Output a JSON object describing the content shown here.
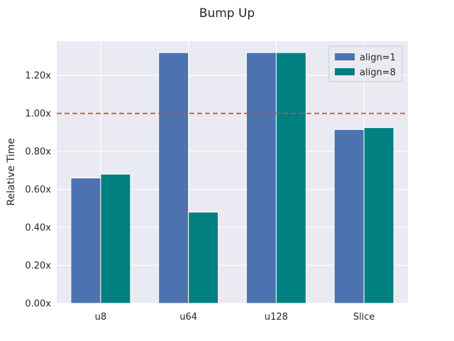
{
  "chart_data": {
    "type": "bar",
    "title": "Bump Up",
    "xlabel": "",
    "ylabel": "Relative Time",
    "categories": [
      "u8",
      "u64",
      "u128",
      "Slice"
    ],
    "series": [
      {
        "name": "align=1",
        "values": [
          0.66,
          1.32,
          1.32,
          0.915
        ],
        "color": "#4c72b0"
      },
      {
        "name": "align=8",
        "values": [
          0.68,
          0.48,
          1.32,
          0.925
        ],
        "color": "#008080"
      }
    ],
    "ylim": [
      0,
      1.38
    ],
    "yticks": [
      0,
      0.2,
      0.4,
      0.6,
      0.8,
      1.0,
      1.2
    ],
    "ytick_labels": [
      "0.00x",
      "0.20x",
      "0.40x",
      "0.60x",
      "0.80x",
      "1.00x",
      "1.20x"
    ],
    "reference_line": {
      "value": 1.0,
      "style": "dashed",
      "color": "#c44e52"
    },
    "grid": true,
    "background": "#eaeaf2",
    "legend_position": "top-right"
  }
}
